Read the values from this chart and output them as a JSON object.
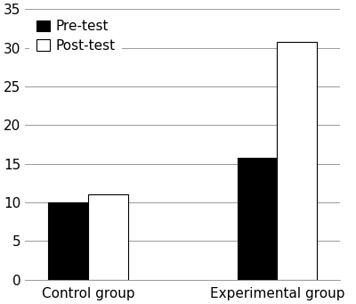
{
  "groups": [
    "Control group",
    "Experimental group"
  ],
  "pre_test": [
    10,
    15.8
  ],
  "post_test": [
    11,
    30.7
  ],
  "bar_colors": [
    "#000000",
    "#ffffff"
  ],
  "bar_edgecolors": [
    "#000000",
    "#000000"
  ],
  "legend_labels": [
    "Pre-test",
    "Post-test"
  ],
  "ylim": [
    0,
    35
  ],
  "yticks": [
    0,
    5,
    10,
    15,
    20,
    25,
    30,
    35
  ],
  "bar_width": 0.38,
  "background_color": "#ffffff",
  "grid_color": "#999999",
  "font_size": 11,
  "x_positions": [
    1.0,
    2.8
  ]
}
